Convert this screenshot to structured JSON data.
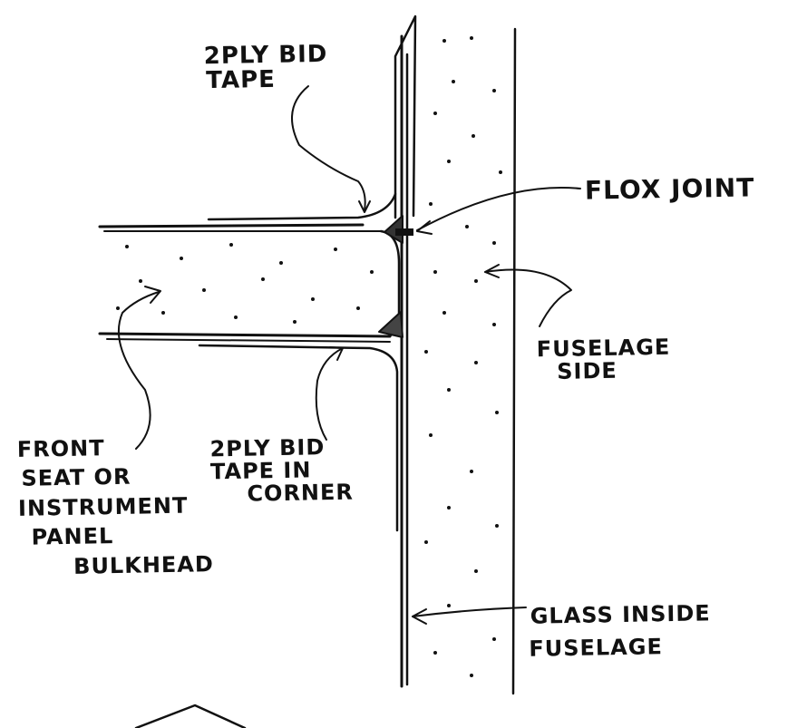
{
  "labels": {
    "top_tape": [
      "2PLY BID",
      "TAPE"
    ],
    "flox_joint": "FLOX JOINT",
    "fuselage_side": [
      "FUSELAGE",
      "SIDE"
    ],
    "bulkhead": [
      "FRONT",
      "SEAT OR",
      "INSTRUMENT",
      "PANEL",
      "BULKHEAD"
    ],
    "corner_tape": [
      "2PLY BID",
      "TAPE IN",
      "CORNER"
    ],
    "glass_inside": [
      "GLASS INSIDE",
      "FUSELAGE"
    ]
  },
  "colors": {
    "ink": "#111111",
    "paper": "#ffffff"
  }
}
